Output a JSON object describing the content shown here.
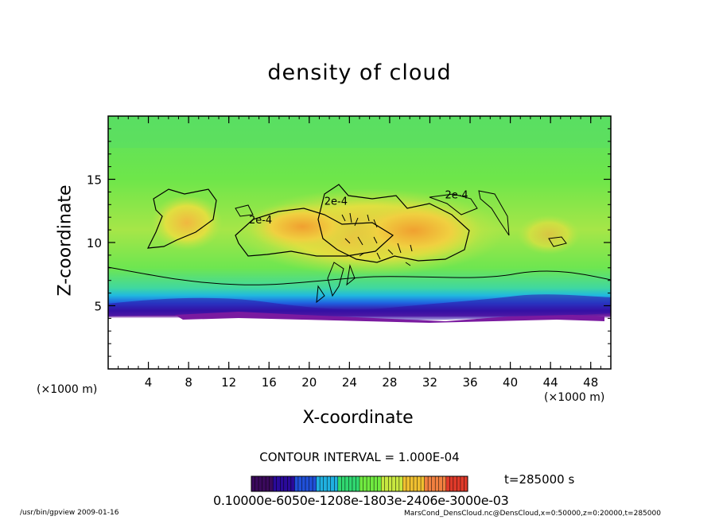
{
  "chart_data": {
    "type": "heatmap",
    "title": "density of cloud",
    "xlabel": "X-coordinate",
    "ylabel": "Z-coordinate",
    "x_unit": "(×1000 m)",
    "y_unit": "(×1000 m)",
    "xlim": [
      0,
      50
    ],
    "ylim": [
      0,
      20
    ],
    "x_ticks": [
      4,
      8,
      12,
      16,
      20,
      24,
      28,
      32,
      36,
      40,
      44,
      48
    ],
    "y_ticks": [
      5,
      10,
      15
    ],
    "contour_labels": [
      "2e-4",
      "2e-4",
      "2e-4"
    ],
    "contour_interval": "CONTOUR INTERVAL = 1.000E-04",
    "time": "t=285000 s",
    "colorbar": {
      "labels": "0.10000e-6050e-1208e-1803e-2406e-3000e-03",
      "colors": [
        "#3a0a5c",
        "#2a0a9a",
        "#2050d8",
        "#20b0e0",
        "#30d870",
        "#70ea40",
        "#c8e840",
        "#f0c030",
        "#f08040",
        "#e03a2a"
      ]
    },
    "grid": false
  },
  "footer": {
    "left": "/usr/bin/gpview  2009-01-16",
    "right": "MarsCond_DensCloud.nc@DensCloud,x=0:50000,z=0:20000,t=285000"
  }
}
